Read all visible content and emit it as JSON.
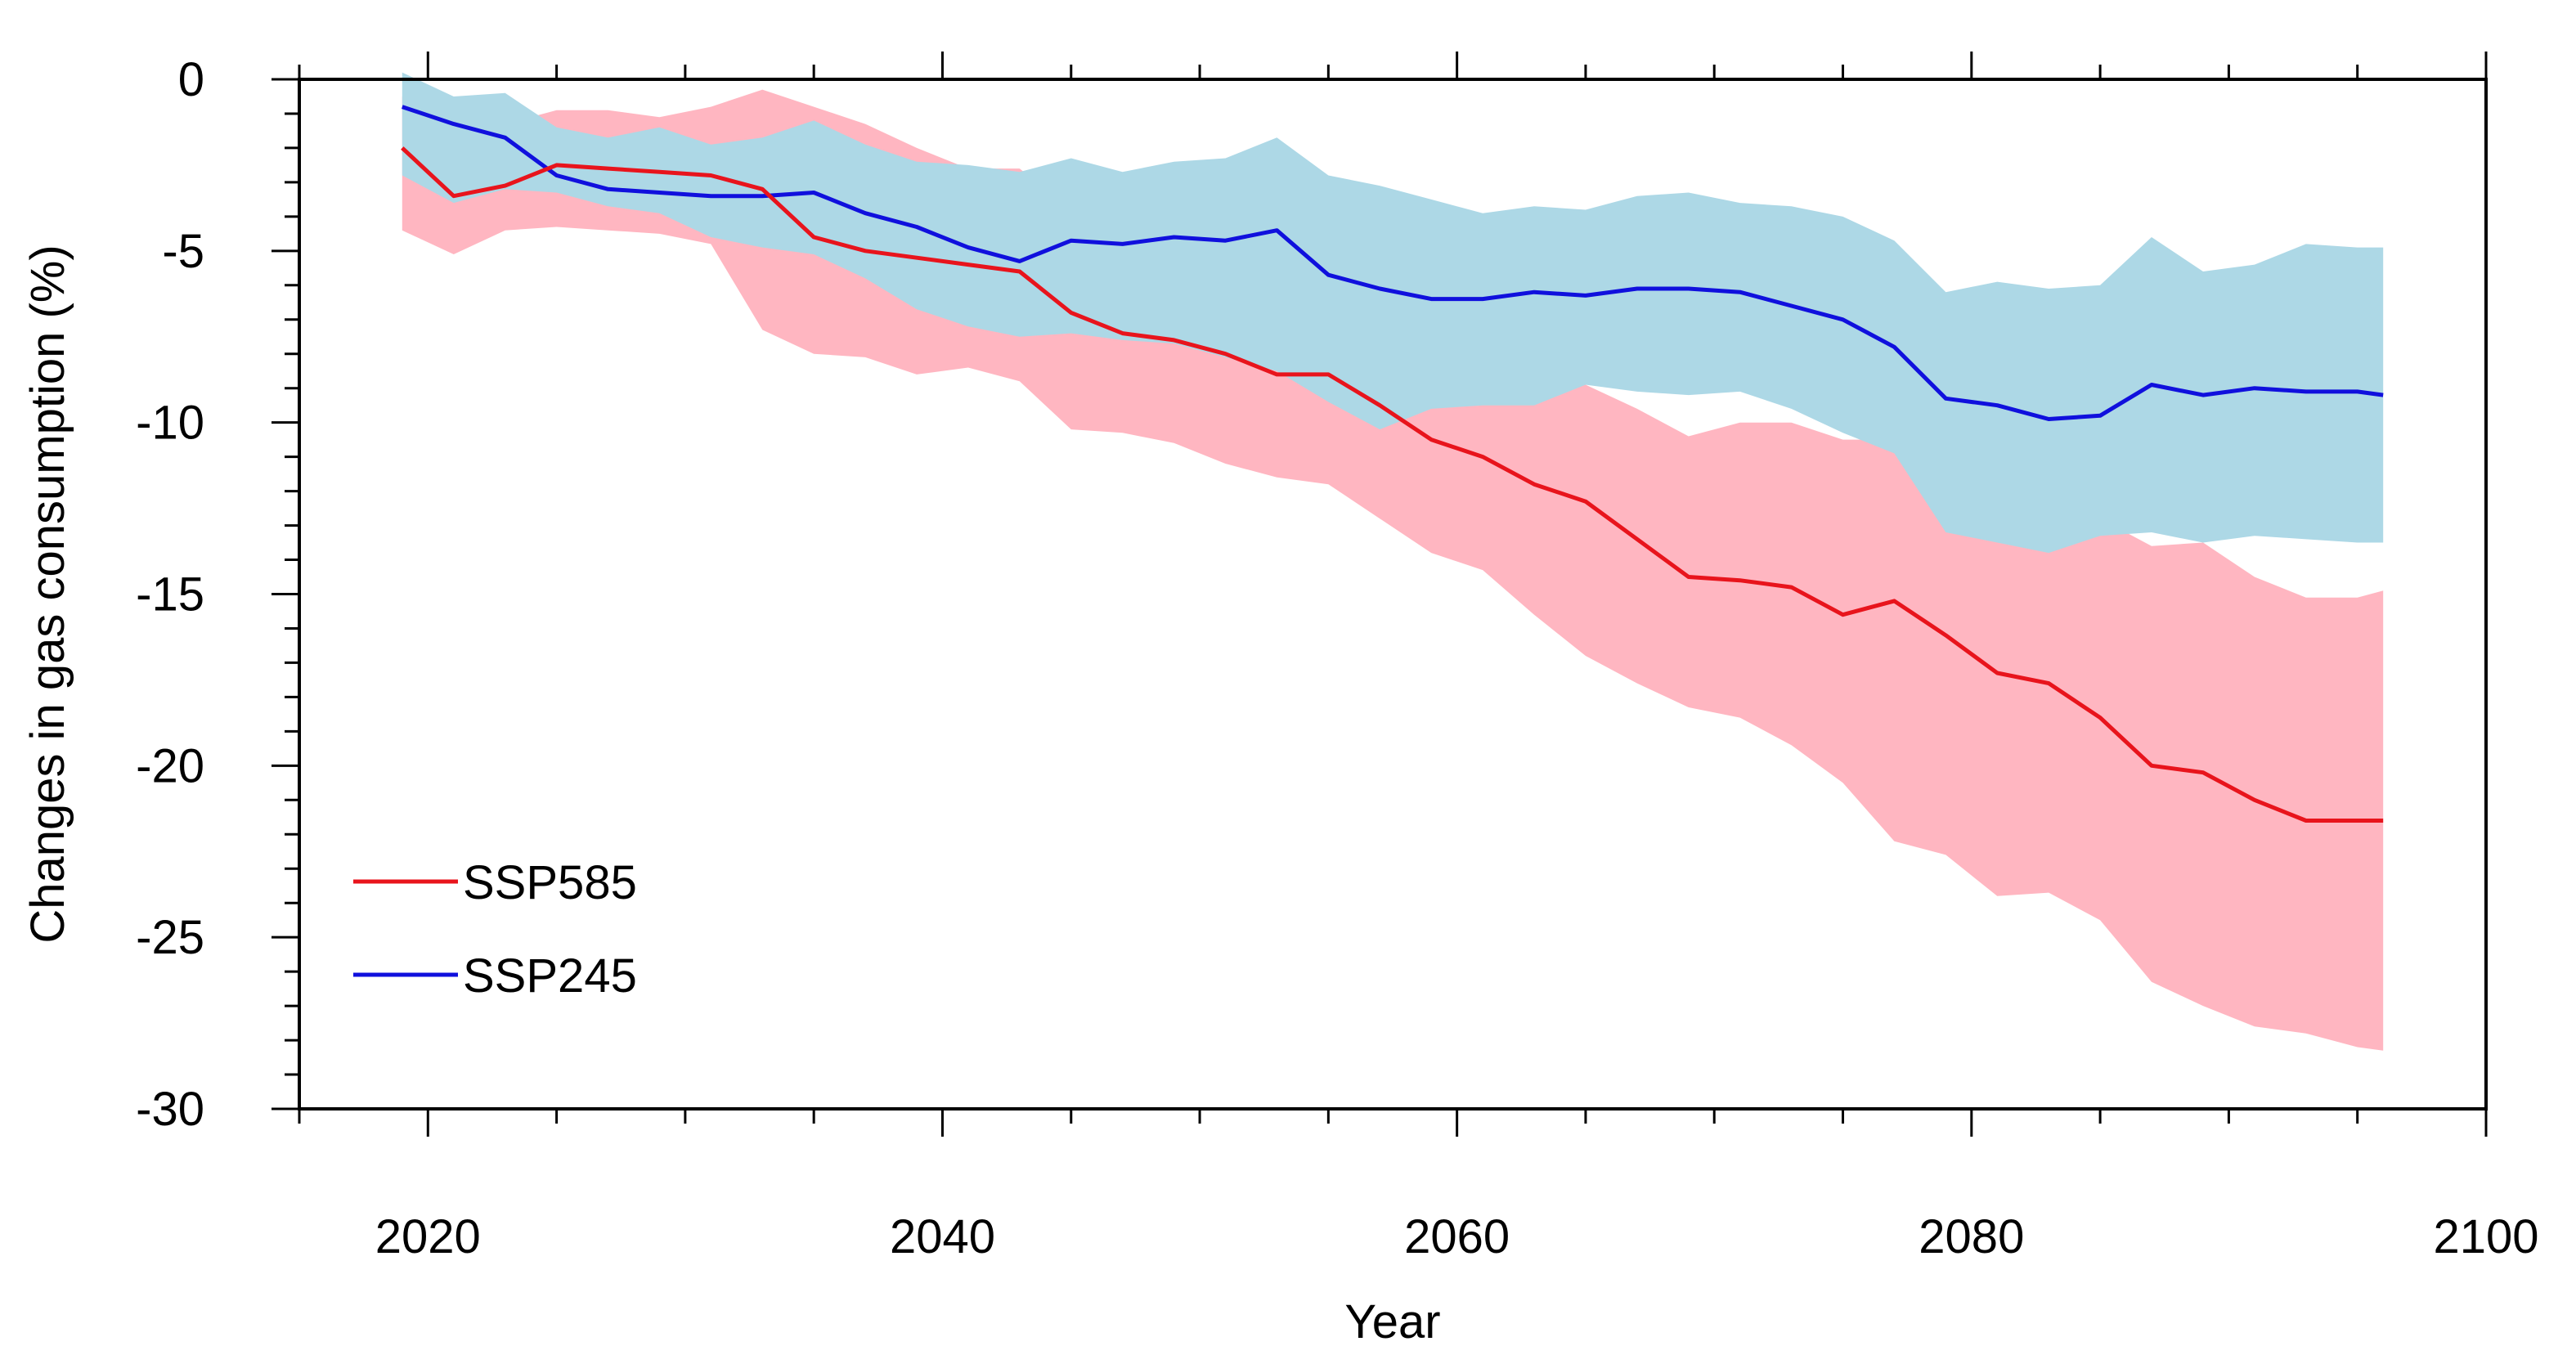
{
  "chart_data": {
    "type": "line",
    "title": "",
    "xlabel": "Year",
    "ylabel": "Changes in gas consumption (%)",
    "xlim": [
      2015,
      2100
    ],
    "ylim": [
      -30,
      0
    ],
    "x_ticks": [
      "2020",
      "2040",
      "2060",
      "2080",
      "2100"
    ],
    "y_ticks": [
      "0",
      "-5",
      "-10",
      "-15",
      "-20",
      "-25",
      "-30"
    ],
    "legend": {
      "placement": "lower-left",
      "entries": [
        "SSP585",
        "SSP245"
      ]
    },
    "series": [
      {
        "name": "SSP585",
        "color": "#e8141c",
        "band_color": "#ffb6c1",
        "x": [
          2019,
          2021,
          2023,
          2025,
          2027,
          2029,
          2031,
          2033,
          2035,
          2037,
          2039,
          2041,
          2043,
          2045,
          2047,
          2049,
          2051,
          2053,
          2055,
          2057,
          2059,
          2061,
          2063,
          2065,
          2067,
          2069,
          2071,
          2073,
          2075,
          2077,
          2079,
          2081,
          2083,
          2085,
          2087,
          2089,
          2091,
          2093,
          2095,
          2096
        ],
        "values": [
          -2.0,
          -3.4,
          -3.1,
          -2.5,
          -2.6,
          -2.7,
          -2.8,
          -3.2,
          -4.6,
          -5.0,
          -5.2,
          -5.4,
          -5.6,
          -6.8,
          -7.4,
          -7.6,
          -8.0,
          -8.6,
          -8.6,
          -9.5,
          -10.5,
          -11.0,
          -11.8,
          -12.3,
          -13.4,
          -14.5,
          -14.6,
          -14.8,
          -15.6,
          -15.2,
          -16.2,
          -17.3,
          -17.6,
          -18.6,
          -20.0,
          -20.2,
          -21.0,
          -21.6,
          -21.6,
          -21.6
        ],
        "upper": [
          -0.5,
          -1.8,
          -1.3,
          -0.9,
          -0.9,
          -1.1,
          -0.8,
          -0.3,
          -0.8,
          -1.3,
          -2.0,
          -2.6,
          -2.6,
          -3.8,
          -4.6,
          -5.2,
          -5.7,
          -6.3,
          -6.6,
          -7.5,
          -7.6,
          -8.0,
          -8.5,
          -8.9,
          -9.6,
          -10.4,
          -10.0,
          -10.0,
          -10.5,
          -10.5,
          -11.8,
          -12.2,
          -12.3,
          -12.8,
          -13.6,
          -13.5,
          -14.5,
          -15.1,
          -15.1,
          -14.9
        ],
        "lower": [
          -4.4,
          -5.1,
          -4.4,
          -4.3,
          -4.4,
          -4.5,
          -4.8,
          -7.3,
          -8.0,
          -8.1,
          -8.6,
          -8.4,
          -8.8,
          -10.2,
          -10.3,
          -10.6,
          -11.2,
          -11.6,
          -11.8,
          -12.8,
          -13.8,
          -14.3,
          -15.6,
          -16.8,
          -17.6,
          -18.3,
          -18.6,
          -19.4,
          -20.5,
          -22.2,
          -22.6,
          -23.8,
          -23.7,
          -24.5,
          -26.3,
          -27.0,
          -27.6,
          -27.8,
          -28.2,
          -28.3
        ]
      },
      {
        "name": "SSP245",
        "color": "#1010dd",
        "band_color": "#add8e6",
        "x": [
          2019,
          2021,
          2023,
          2025,
          2027,
          2029,
          2031,
          2033,
          2035,
          2037,
          2039,
          2041,
          2043,
          2045,
          2047,
          2049,
          2051,
          2053,
          2055,
          2057,
          2059,
          2061,
          2063,
          2065,
          2067,
          2069,
          2071,
          2073,
          2075,
          2077,
          2079,
          2081,
          2083,
          2085,
          2087,
          2089,
          2091,
          2093,
          2095,
          2096
        ],
        "values": [
          -0.8,
          -1.3,
          -1.7,
          -2.8,
          -3.2,
          -3.3,
          -3.4,
          -3.4,
          -3.3,
          -3.9,
          -4.3,
          -4.9,
          -5.3,
          -4.7,
          -4.8,
          -4.6,
          -4.7,
          -4.4,
          -5.7,
          -6.1,
          -6.4,
          -6.4,
          -6.2,
          -6.3,
          -6.1,
          -6.1,
          -6.2,
          -6.6,
          -7.0,
          -7.8,
          -9.3,
          -9.5,
          -9.9,
          -9.8,
          -8.9,
          -9.2,
          -9.0,
          -9.1,
          -9.1,
          -9.2
        ],
        "upper": [
          0.2,
          -0.5,
          -0.4,
          -1.4,
          -1.7,
          -1.4,
          -1.9,
          -1.7,
          -1.2,
          -1.9,
          -2.4,
          -2.5,
          -2.7,
          -2.3,
          -2.7,
          -2.4,
          -2.3,
          -1.7,
          -2.8,
          -3.1,
          -3.5,
          -3.9,
          -3.7,
          -3.8,
          -3.4,
          -3.3,
          -3.6,
          -3.7,
          -4.0,
          -4.7,
          -6.2,
          -5.9,
          -6.1,
          -6.0,
          -4.6,
          -5.6,
          -5.4,
          -4.8,
          -4.9,
          -4.9
        ],
        "lower": [
          -2.8,
          -3.6,
          -3.2,
          -3.3,
          -3.7,
          -3.9,
          -4.6,
          -4.9,
          -5.1,
          -5.8,
          -6.7,
          -7.2,
          -7.5,
          -7.4,
          -7.6,
          -7.7,
          -8.1,
          -8.5,
          -9.4,
          -10.2,
          -9.6,
          -9.5,
          -9.5,
          -8.9,
          -9.1,
          -9.2,
          -9.1,
          -9.6,
          -10.3,
          -10.9,
          -13.2,
          -13.5,
          -13.8,
          -13.3,
          -13.2,
          -13.5,
          -13.3,
          -13.4,
          -13.5,
          -13.5
        ]
      }
    ]
  }
}
